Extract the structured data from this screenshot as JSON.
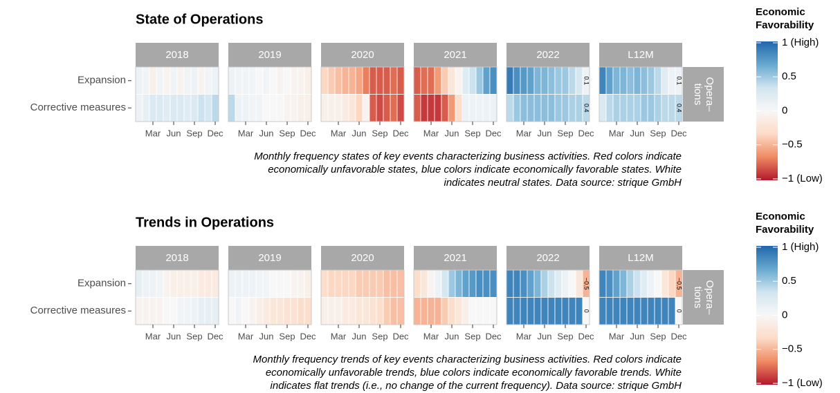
{
  "chart_data": [
    {
      "type": "heatmap",
      "title": "State of Operations",
      "rows": [
        "Expansion",
        "Corrective measures"
      ],
      "strip_label": [
        "Opera–",
        "tions"
      ],
      "month_ticks": [
        {
          "value": 3,
          "label": "Mar"
        },
        {
          "value": 6,
          "label": "Jun"
        },
        {
          "value": 9,
          "label": "Sep"
        },
        {
          "value": 12,
          "label": "Dec"
        }
      ],
      "facets": [
        {
          "label": "2018",
          "values": [
            [
              0.1,
              0.05,
              -0.1,
              0.05,
              -0.05,
              0.05,
              -0.05,
              0.05,
              0.1,
              -0.05,
              0.05,
              0.1
            ],
            [
              0.1,
              0.15,
              0.25,
              0.25,
              0.2,
              0.25,
              0.25,
              0.2,
              0.25,
              0.35,
              0.3,
              0.4
            ]
          ]
        },
        {
          "label": "2019",
          "values": [
            [
              0.1,
              0.05,
              0.05,
              0.05,
              0,
              0.05,
              0,
              -0.05,
              0,
              -0.05,
              -0.05,
              -0.1
            ],
            [
              0.4,
              0.1,
              0.1,
              0.05,
              0.05,
              0,
              0,
              0,
              -0.05,
              -0.05,
              -0.1,
              -0.1
            ]
          ]
        },
        {
          "label": "2020",
          "values": [
            [
              -0.35,
              -0.4,
              -0.45,
              -0.5,
              -0.5,
              -0.55,
              -0.7,
              -0.8,
              -0.8,
              -0.8,
              -0.75,
              -0.8
            ],
            [
              -0.1,
              -0.1,
              -0.1,
              -0.15,
              -0.2,
              -0.35,
              -0.05,
              -0.8,
              -0.85,
              -0.8,
              -0.75,
              -0.85
            ]
          ]
        },
        {
          "label": "2021",
          "values": [
            [
              -0.8,
              -0.75,
              -0.75,
              -0.6,
              -0.4,
              -0.2,
              -0.05,
              0.2,
              0.35,
              0.5,
              0.7,
              0.8
            ],
            [
              -0.8,
              -0.9,
              -0.9,
              -0.9,
              -0.8,
              -0.6,
              -0.3,
              0.1,
              0.1,
              0.1,
              0.1,
              0.1
            ]
          ]
        },
        {
          "label": "2022",
          "values": [
            [
              0.9,
              0.8,
              0.75,
              0.7,
              0.6,
              0.6,
              0.55,
              0.5,
              0.5,
              0.4,
              0.3,
              0.1
            ],
            [
              0.4,
              0.5,
              0.55,
              0.55,
              0.55,
              0.55,
              0.55,
              0.5,
              0.5,
              0.45,
              0.45,
              0.4
            ]
          ],
          "value_labels": [
            [
              null,
              null,
              null,
              null,
              null,
              null,
              null,
              null,
              null,
              null,
              null,
              "0.1"
            ],
            [
              null,
              null,
              null,
              null,
              null,
              null,
              null,
              null,
              null,
              null,
              null,
              "0.4"
            ]
          ]
        },
        {
          "label": "L12M",
          "values": [
            [
              0.85,
              0.7,
              0.6,
              0.6,
              0.55,
              0.6,
              0.55,
              0.5,
              0.4,
              0.2,
              0.1,
              0.1
            ],
            [
              0.25,
              0.4,
              0.45,
              0.45,
              0.45,
              0.45,
              0.5,
              0.5,
              0.45,
              0.4,
              0.4,
              0.4
            ]
          ],
          "value_labels": [
            [
              null,
              null,
              null,
              null,
              null,
              null,
              null,
              null,
              null,
              null,
              null,
              "0.1"
            ],
            [
              null,
              null,
              null,
              null,
              null,
              null,
              null,
              null,
              null,
              null,
              null,
              "0.4"
            ]
          ]
        }
      ],
      "caption": [
        "Monthly frequency states of key events characterizing business activities. Red colors indicate",
        "economically unfavorable states, blue colors indicate economically favorable states. White",
        "indicates neutral states. Data source: strique GmbH"
      ],
      "legend": {
        "title": [
          "Economic",
          "Favorability"
        ],
        "clim": [
          -1,
          1
        ],
        "colors": [
          "#b2182b",
          "#ef8a62",
          "#fddbc7",
          "#f7f7f7",
          "#d1e5f0",
          "#67a9cf",
          "#2166ac"
        ],
        "ticks": [
          {
            "value": 1,
            "label": "1 (High)"
          },
          0.5,
          0,
          {
            "value": -0.5,
            "label": "−0.5"
          },
          {
            "value": -1,
            "label": "−1 (Low)"
          }
        ]
      }
    },
    {
      "type": "heatmap",
      "title": "Trends in Operations",
      "rows": [
        "Expansion",
        "Corrective measures"
      ],
      "strip_label": [
        "Opera–",
        "tions"
      ],
      "month_ticks": [
        {
          "value": 3,
          "label": "Mar"
        },
        {
          "value": 6,
          "label": "Jun"
        },
        {
          "value": 9,
          "label": "Sep"
        },
        {
          "value": 12,
          "label": "Dec"
        }
      ],
      "facets": [
        {
          "label": "2018",
          "values": [
            [
              0.15,
              0.1,
              0.1,
              0.05,
              -0.05,
              -0.1,
              -0.1,
              -0.1,
              -0.1,
              -0.15,
              -0.15,
              -0.15
            ],
            [
              -0.05,
              -0.05,
              -0.05,
              -0.05,
              0,
              0,
              0.05,
              0.05,
              0.1,
              0.15,
              0.15,
              0.15
            ]
          ]
        },
        {
          "label": "2019",
          "values": [
            [
              0.1,
              0.1,
              0.1,
              0.1,
              0.05,
              0.05,
              0,
              0,
              0,
              -0.05,
              -0.05,
              -0.1
            ],
            [
              0,
              0.05,
              0,
              -0.05,
              -0.1,
              -0.15,
              -0.2,
              -0.2,
              -0.25,
              -0.25,
              -0.3,
              -0.3
            ]
          ]
        },
        {
          "label": "2020",
          "values": [
            [
              -0.3,
              -0.35,
              -0.35,
              -0.35,
              -0.35,
              -0.4,
              -0.4,
              -0.4,
              -0.4,
              -0.45,
              -0.45,
              -0.45
            ],
            [
              -0.1,
              -0.1,
              -0.1,
              -0.15,
              -0.15,
              -0.2,
              -0.2,
              -0.25,
              -0.3,
              -0.4,
              -0.45,
              -0.45
            ]
          ]
        },
        {
          "label": "2021",
          "values": [
            [
              -0.3,
              -0.2,
              -0.05,
              0.1,
              0.3,
              0.5,
              0.6,
              0.7,
              0.75,
              0.8,
              0.8,
              0.8
            ],
            [
              -0.5,
              -0.5,
              -0.5,
              -0.5,
              -0.4,
              -0.3,
              -0.2,
              -0.1,
              0,
              0,
              0,
              0
            ]
          ]
        },
        {
          "label": "2022",
          "values": [
            [
              0.85,
              0.85,
              0.8,
              0.7,
              0.6,
              0.45,
              0.35,
              0.2,
              0.1,
              0,
              -0.2,
              -0.5
            ],
            [
              0.85,
              0.85,
              0.85,
              0.85,
              0.85,
              0.85,
              0.85,
              0.85,
              0.85,
              0.85,
              0.85,
              0
            ]
          ],
          "value_labels": [
            [
              null,
              null,
              null,
              null,
              null,
              null,
              null,
              null,
              null,
              null,
              null,
              "−0.5"
            ],
            [
              null,
              null,
              null,
              null,
              null,
              null,
              null,
              null,
              null,
              null,
              null,
              "0"
            ]
          ]
        },
        {
          "label": "L12M",
          "values": [
            [
              0.85,
              0.8,
              0.7,
              0.6,
              0.45,
              0.35,
              0.2,
              0.1,
              0,
              -0.2,
              -0.35,
              -0.5
            ],
            [
              0.85,
              0.85,
              0.85,
              0.85,
              0.85,
              0.85,
              0.85,
              0.85,
              0.85,
              0.85,
              0.85,
              0
            ]
          ],
          "value_labels": [
            [
              null,
              null,
              null,
              null,
              null,
              null,
              null,
              null,
              null,
              null,
              null,
              "−0.5"
            ],
            [
              null,
              null,
              null,
              null,
              null,
              null,
              null,
              null,
              null,
              null,
              null,
              "0"
            ]
          ]
        }
      ],
      "caption": [
        "Monthly frequency trends of key events characterizing business activities. Red colors indicate",
        "economically unfavorable trends, blue colors indicate economically favorable trends. White",
        "indicates flat trends (i.e., no change of the current frequency). Data source: strique GmbH"
      ],
      "legend": {
        "title": [
          "Economic",
          "Favorability"
        ],
        "clim": [
          -1,
          1
        ],
        "colors": [
          "#b2182b",
          "#ef8a62",
          "#fddbc7",
          "#f7f7f7",
          "#d1e5f0",
          "#67a9cf",
          "#2166ac"
        ],
        "ticks": [
          {
            "value": 1,
            "label": "1 (High)"
          },
          0.5,
          0,
          {
            "value": -0.5,
            "label": "−0.5"
          },
          {
            "value": -1,
            "label": "−1 (Low)"
          }
        ]
      }
    }
  ]
}
